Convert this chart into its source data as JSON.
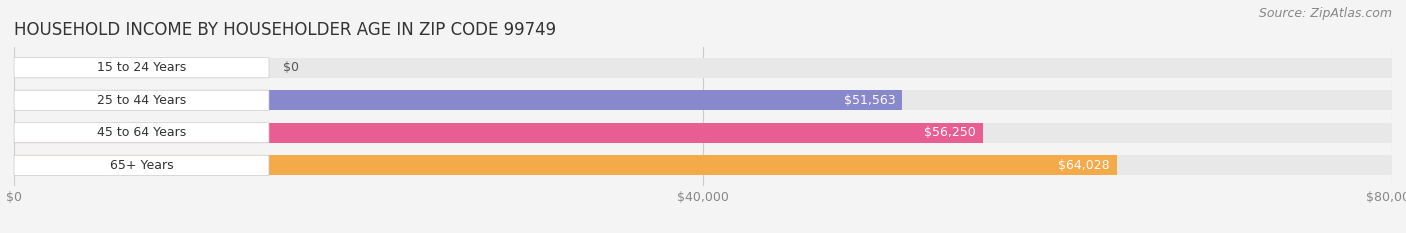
{
  "title": "HOUSEHOLD INCOME BY HOUSEHOLDER AGE IN ZIP CODE 99749",
  "source": "Source: ZipAtlas.com",
  "categories": [
    "15 to 24 Years",
    "25 to 44 Years",
    "45 to 64 Years",
    "65+ Years"
  ],
  "values": [
    0,
    51563,
    56250,
    64028
  ],
  "labels": [
    "$0",
    "$51,563",
    "$56,250",
    "$64,028"
  ],
  "bar_colors": [
    "#5ecfcf",
    "#8888cc",
    "#e85d92",
    "#f5aa4a"
  ],
  "background_color": "#f4f4f4",
  "bar_bg_color": "#e8e8e8",
  "label_bg_color": "#ffffff",
  "xlim": [
    0,
    80000
  ],
  "xticks": [
    0,
    40000,
    80000
  ],
  "xticklabels": [
    "$0",
    "$40,000",
    "$80,000"
  ],
  "title_fontsize": 12,
  "source_fontsize": 9,
  "label_fontsize": 9,
  "cat_fontsize": 9,
  "tick_fontsize": 9,
  "bar_height": 0.62,
  "fig_width": 14.06,
  "fig_height": 2.33
}
